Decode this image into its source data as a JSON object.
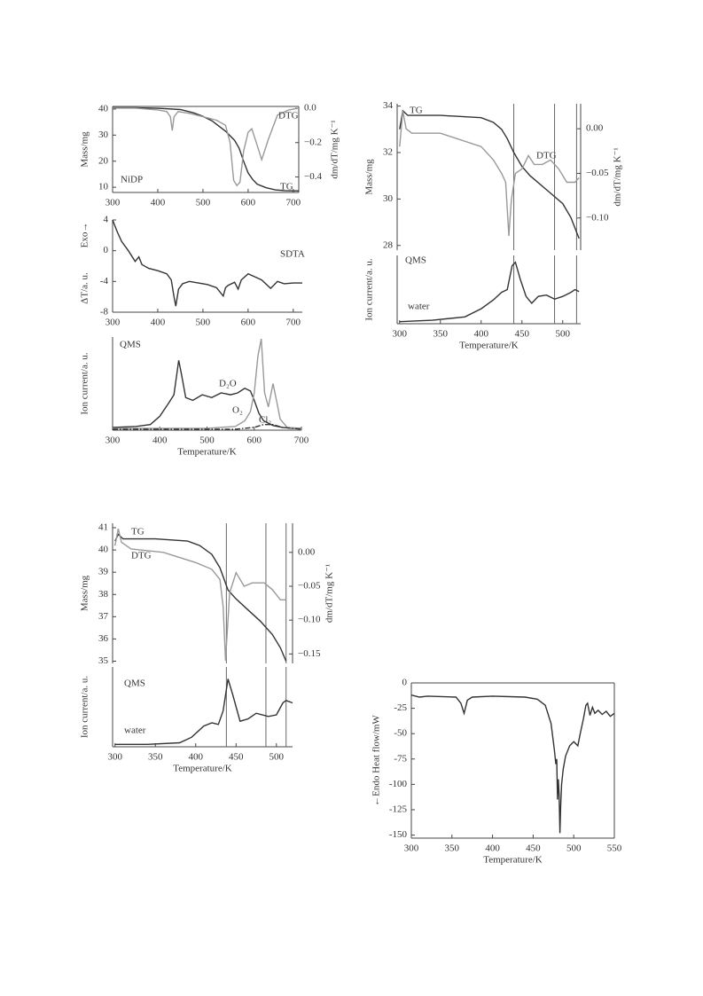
{
  "chart_data": [
    {
      "type": "line",
      "xlim": [
        300,
        712
      ],
      "xticks": [
        300,
        400,
        500,
        600,
        700
      ],
      "ylim": [
        8,
        41
      ],
      "yticks": [
        10,
        20,
        30,
        40
      ],
      "ylabel": "Mass/mg",
      "y2lim": [
        -0.49,
        0.01
      ],
      "y2ticks": [
        {
          "value": 0,
          "label": "0.0"
        },
        {
          "value": -0.2,
          "label": "−0.2"
        },
        {
          "value": -0.4,
          "label": "−0.4"
        }
      ],
      "y2label": "dm/dT/mg K⁻¹",
      "annotations": [
        "NiDP"
      ],
      "series": [
        {
          "name": "TG",
          "color": "#333333",
          "x": [
            300,
            350,
            400,
            450,
            480,
            500,
            520,
            550,
            570,
            580,
            590,
            600,
            610,
            620,
            640,
            660,
            680,
            700,
            712
          ],
          "values": [
            40.5,
            40.5,
            40.3,
            39.8,
            38.5,
            37.2,
            35.5,
            31.5,
            28,
            25,
            20,
            15.5,
            13,
            11.2,
            9.8,
            9,
            8.7,
            8.6,
            8.6
          ]
        },
        {
          "name": "DTG",
          "color": "#999999",
          "axis": "y2",
          "x": [
            300,
            350,
            400,
            420,
            428,
            432,
            436,
            445,
            470,
            500,
            530,
            550,
            560,
            568,
            575,
            582,
            590,
            600,
            608,
            618,
            630,
            645,
            665,
            690,
            712
          ],
          "values": [
            0.0,
            0.0,
            -0.01,
            -0.02,
            -0.05,
            -0.13,
            -0.05,
            -0.02,
            -0.03,
            -0.05,
            -0.07,
            -0.1,
            -0.2,
            -0.42,
            -0.45,
            -0.43,
            -0.25,
            -0.14,
            -0.12,
            -0.2,
            -0.3,
            -0.18,
            -0.04,
            -0.01,
            0.0
          ]
        }
      ]
    },
    {
      "type": "line",
      "xlim": [
        300,
        720
      ],
      "xticks": [
        300,
        400,
        500,
        600,
        700
      ],
      "ylim": [
        -8,
        4
      ],
      "yticks": [
        -8,
        -4,
        0,
        4
      ],
      "ylabel": "ΔT/a. u.",
      "annotations": [
        "Exo→"
      ],
      "series": [
        {
          "name": "SDTA",
          "color": "#333333",
          "x": [
            300,
            310,
            320,
            335,
            350,
            358,
            365,
            380,
            400,
            420,
            430,
            436,
            440,
            446,
            455,
            470,
            490,
            510,
            530,
            545,
            550,
            556,
            570,
            578,
            585,
            600,
            615,
            630,
            650,
            665,
            680,
            700,
            720
          ],
          "values": [
            4,
            2.5,
            1.2,
            0,
            -1.4,
            -0.8,
            -1.8,
            -2.3,
            -2.6,
            -3,
            -3.8,
            -6,
            -7.2,
            -5,
            -4.3,
            -4,
            -4.2,
            -4.4,
            -4.8,
            -5.9,
            -4.8,
            -4.5,
            -4.1,
            -5,
            -3.8,
            -3,
            -3.4,
            -3.8,
            -4.9,
            -4,
            -4.3,
            -4.2,
            -4.2
          ]
        }
      ]
    },
    {
      "type": "line",
      "xlim": [
        300,
        700
      ],
      "xticks": [
        300,
        400,
        500,
        600,
        700
      ],
      "ylim": [
        0,
        10
      ],
      "ylabel": "Ion current/a. u.",
      "xlabel": "Temperature/K",
      "annotations": [
        "QMS"
      ],
      "series": [
        {
          "name": "D₂O",
          "color": "#333333",
          "x": [
            300,
            350,
            380,
            400,
            420,
            430,
            440,
            446,
            455,
            470,
            490,
            510,
            530,
            550,
            565,
            580,
            592,
            600,
            610,
            620,
            640,
            660,
            680,
            700
          ],
          "values": [
            0.3,
            0.4,
            0.6,
            1.5,
            3,
            3.8,
            7.5,
            6,
            3.5,
            3.2,
            3.8,
            3.5,
            4,
            3.8,
            4,
            4.5,
            4.2,
            3.2,
            1.8,
            1,
            0.5,
            0.3,
            0.2,
            0.2
          ]
        },
        {
          "name": "O₂",
          "color": "#999999",
          "x": [
            300,
            500,
            560,
            580,
            592,
            600,
            608,
            615,
            622,
            630,
            640,
            648,
            655,
            670,
            700
          ],
          "values": [
            0.2,
            0.2,
            0.4,
            1,
            2,
            4,
            8,
            9.8,
            4,
            2.5,
            5,
            3,
            1.2,
            0.3,
            0.2
          ]
        },
        {
          "name": "Cl₂",
          "color": "#333333",
          "dash": "dash-dot",
          "x": [
            300,
            560,
            600,
            620,
            640,
            660,
            700
          ],
          "values": [
            0.1,
            0.1,
            0.3,
            0.6,
            0.6,
            0.3,
            0.1
          ]
        }
      ]
    },
    {
      "type": "line",
      "xlim": [
        297,
        522
      ],
      "ylim": [
        27.8,
        34.1
      ],
      "yticks": [
        28,
        30,
        32,
        34
      ],
      "ylabel": "Mass/mg",
      "y2lim": [
        -0.136,
        0.028
      ],
      "y2ticks": [
        {
          "value": 0,
          "label": "0.00"
        },
        {
          "value": -0.05,
          "label": "−0.05"
        },
        {
          "value": -0.1,
          "label": "−0.10"
        }
      ],
      "y2label": "dm/dT/mg K⁻¹",
      "vlines": [
        440,
        490,
        517
      ],
      "series": [
        {
          "name": "TG",
          "color": "#333333",
          "x": [
            300,
            304,
            310,
            350,
            400,
            415,
            425,
            432,
            440,
            450,
            460,
            480,
            500,
            510,
            520
          ],
          "values": [
            33.0,
            33.8,
            33.6,
            33.6,
            33.5,
            33.3,
            33.0,
            32.6,
            32.0,
            31.4,
            31.0,
            30.4,
            29.8,
            29.2,
            28.3
          ]
        },
        {
          "name": "DTG",
          "color": "#999999",
          "axis": "y2",
          "x": [
            300,
            304,
            308,
            315,
            350,
            400,
            415,
            425,
            430,
            434,
            437,
            442,
            450,
            458,
            465,
            475,
            485,
            495,
            505,
            515,
            520
          ],
          "values": [
            -0.02,
            0.02,
            0.0,
            -0.005,
            -0.005,
            -0.02,
            -0.035,
            -0.05,
            -0.06,
            -0.12,
            -0.08,
            -0.05,
            -0.045,
            -0.03,
            -0.04,
            -0.04,
            -0.035,
            -0.045,
            -0.06,
            -0.06,
            -0.055
          ]
        }
      ]
    },
    {
      "type": "line",
      "xlim": [
        297,
        522
      ],
      "xticks": [
        300,
        350,
        400,
        450,
        500
      ],
      "ylim": [
        0,
        10
      ],
      "ylabel": "Ion current/a. u.",
      "xlabel": "Temperature/K",
      "annotations": [
        "QMS"
      ],
      "vlines": [
        440,
        490,
        517
      ],
      "series": [
        {
          "name": "water",
          "color": "#333333",
          "x": [
            300,
            340,
            380,
            400,
            415,
            425,
            432,
            438,
            442,
            448,
            455,
            462,
            470,
            480,
            490,
            500,
            510,
            515,
            520
          ],
          "values": [
            0.3,
            0.5,
            1,
            2.2,
            3.5,
            4.6,
            5,
            8.5,
            9,
            6.5,
            4,
            3,
            4,
            4.2,
            3.6,
            4,
            4.6,
            5,
            4.7
          ]
        }
      ]
    },
    {
      "type": "line",
      "xlim": [
        297,
        520
      ],
      "ylim": [
        34.9,
        41.2
      ],
      "yticks": [
        35,
        36,
        37,
        38,
        39,
        40,
        41
      ],
      "ylabel": "Mass/mg",
      "y2lim": [
        -0.164,
        0.043
      ],
      "y2ticks": [
        {
          "value": 0,
          "label": "0.00"
        },
        {
          "value": -0.05,
          "label": "−0.05"
        },
        {
          "value": -0.1,
          "label": "−0.10"
        },
        {
          "value": -0.15,
          "label": "−0.15"
        }
      ],
      "y2label": "dm/dT/mg K⁻¹",
      "vlines": [
        438,
        487,
        512
      ],
      "series": [
        {
          "name": "TG",
          "color": "#333333",
          "x": [
            300,
            304,
            310,
            350,
            390,
            405,
            420,
            430,
            440,
            450,
            465,
            480,
            495,
            505,
            512
          ],
          "values": [
            40.4,
            40.7,
            40.5,
            40.5,
            40.4,
            40.2,
            39.8,
            39.2,
            38.2,
            37.8,
            37.3,
            36.8,
            36.2,
            35.6,
            35.0
          ]
        },
        {
          "name": "DTG",
          "color": "#999999",
          "axis": "y2",
          "x": [
            300,
            304,
            308,
            320,
            360,
            400,
            420,
            430,
            434,
            437,
            442,
            450,
            460,
            470,
            485,
            495,
            505,
            512
          ],
          "values": [
            0.01,
            0.035,
            0.015,
            0.005,
            0.0,
            -0.015,
            -0.025,
            -0.04,
            -0.08,
            -0.16,
            -0.06,
            -0.03,
            -0.05,
            -0.045,
            -0.045,
            -0.055,
            -0.07,
            -0.07
          ]
        }
      ]
    },
    {
      "type": "line",
      "xlim": [
        297,
        520
      ],
      "xticks": [
        300,
        350,
        400,
        450,
        500
      ],
      "ylim": [
        0,
        10
      ],
      "ylabel": "Ion current/a. u.",
      "xlabel": "Temperature/K",
      "annotations": [
        "QMS"
      ],
      "vlines": [
        438,
        487,
        512
      ],
      "series": [
        {
          "name": "water",
          "color": "#333333",
          "x": [
            300,
            340,
            380,
            395,
            410,
            420,
            428,
            434,
            440,
            446,
            455,
            465,
            475,
            490,
            500,
            508,
            512,
            520
          ],
          "values": [
            0.3,
            0.3,
            0.5,
            1.2,
            2.6,
            3,
            2.8,
            4.5,
            8.5,
            6.5,
            3.2,
            3.5,
            4.2,
            3.8,
            4,
            5.5,
            5.8,
            5.5
          ]
        }
      ]
    },
    {
      "type": "line",
      "xlim": [
        300,
        550
      ],
      "xticks": [
        300,
        350,
        400,
        450,
        500,
        550
      ],
      "ylim": [
        -153,
        0
      ],
      "yticks": [
        -150,
        -125,
        -100,
        -75,
        -50,
        -25,
        0
      ],
      "ylabel": "←Endo  Heat flow/mW",
      "xlabel": "Temperature/K",
      "series": [
        {
          "color": "#333333",
          "x": [
            300,
            310,
            320,
            355,
            361,
            365,
            369,
            375,
            400,
            440,
            455,
            465,
            472,
            476,
            478,
            479,
            480,
            481,
            482,
            483,
            484,
            485,
            487,
            490,
            495,
            500,
            505,
            508,
            512,
            515,
            517,
            520,
            523,
            526,
            530,
            535,
            540,
            545,
            550
          ],
          "values": [
            -12,
            -14,
            -13,
            -14,
            -20,
            -30,
            -17,
            -14,
            -13,
            -14,
            -16,
            -22,
            -40,
            -65,
            -80,
            -75,
            -115,
            -95,
            -110,
            -148,
            -120,
            -100,
            -85,
            -72,
            -62,
            -58,
            -62,
            -50,
            -35,
            -22,
            -20,
            -32,
            -24,
            -30,
            -27,
            -31,
            -28,
            -33,
            -30
          ]
        }
      ]
    }
  ]
}
